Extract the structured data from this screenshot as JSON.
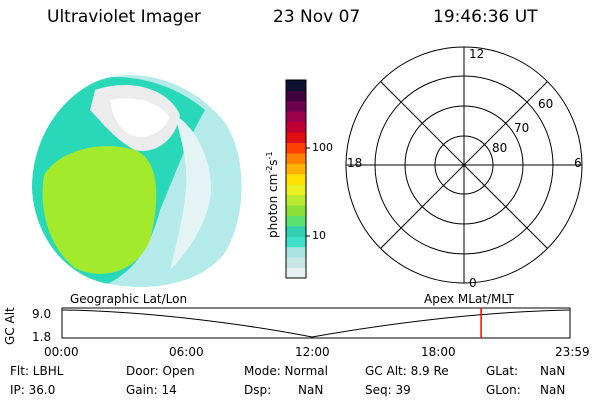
{
  "header": {
    "instrument": "Ultraviolet Imager",
    "date": "23 Nov 07",
    "time": "19:46:36 UT"
  },
  "colorbar": {
    "unit_label": "photon cm^-2 s^-1",
    "ticks": [
      "100",
      "10"
    ],
    "colors": [
      "#e8f2f2",
      "#c8e6e6",
      "#a8e4e4",
      "#40e0c8",
      "#30d0b0",
      "#58e070",
      "#88e038",
      "#b8e830",
      "#e8f020",
      "#ffe000",
      "#ffb000",
      "#ff8000",
      "#ff4000",
      "#e01010",
      "#c00030",
      "#a00050",
      "#700050",
      "#400040",
      "#101030"
    ]
  },
  "image_panel": {
    "colors": {
      "green": "#a4ea2c",
      "cyan": "#28d8b8",
      "light_cyan": "#b4eaea",
      "white": "#ececec"
    }
  },
  "polar_plot": {
    "mlt_labels": [
      "12",
      "18",
      "6",
      "0"
    ],
    "lat_labels": [
      "60",
      "70",
      "80"
    ]
  },
  "timeline": {
    "left_label": "Geographic Lat/Lon",
    "right_label": "Apex MLat/MLT",
    "y_axis_label": "GC Alt",
    "y_ticks": [
      "9.0",
      "1.8"
    ],
    "x_ticks": [
      "00:00",
      "06:00",
      "12:00",
      "18:00",
      "23:59"
    ],
    "current_time_fraction": 0.825,
    "marker_color": "#ff0000"
  },
  "status": {
    "flt": "Flt: LBHL",
    "ip": "IP: 36.0",
    "door": "Door: Open",
    "gain": "Gain: 14",
    "mode": "Mode: Normal",
    "dsp": "Dsp:",
    "dsp_val": "NaN",
    "gcalt": "GC Alt: 8.9 Re",
    "seq": "Seq: 39",
    "glat": "GLat:",
    "glat_val": "NaN",
    "glon": "GLon:",
    "glon_val": "NaN"
  }
}
